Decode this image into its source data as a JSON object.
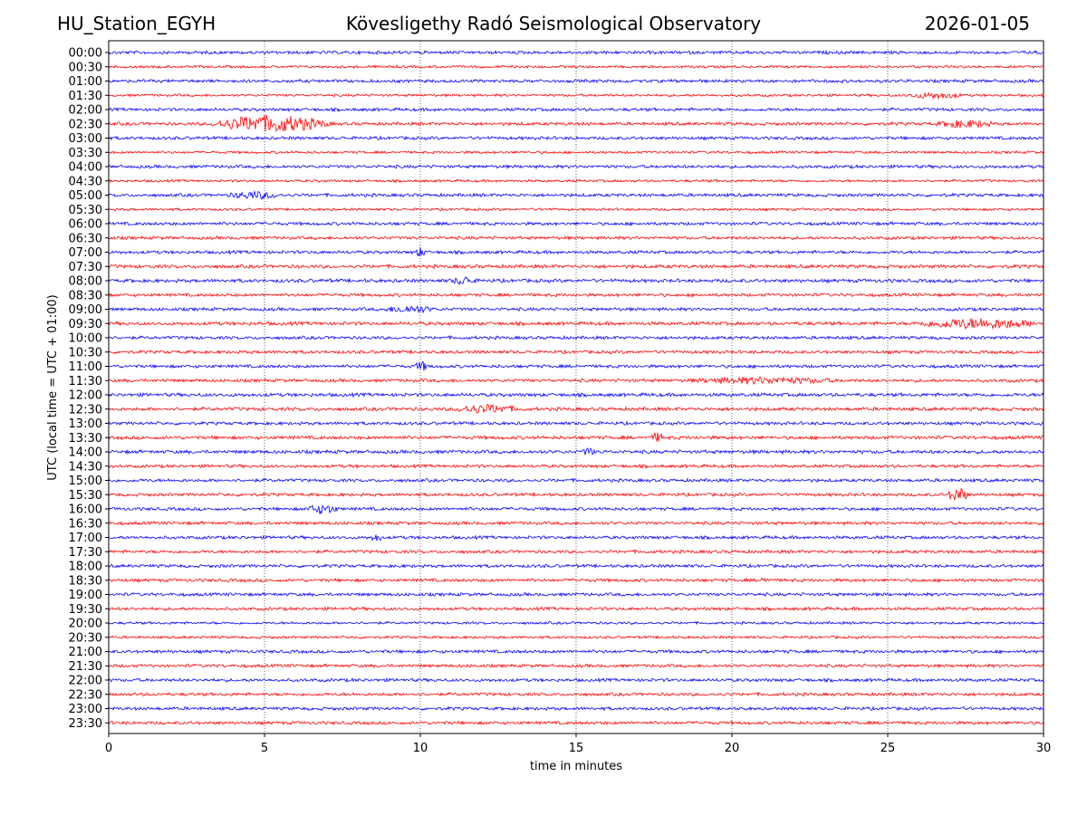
{
  "header": {
    "station": "HU_Station_EGYH",
    "title": "Kövesligethy Radó Seismological Observatory",
    "date": "2026-01-05"
  },
  "chart_data": {
    "type": "line",
    "title": "Kövesligethy Radó Seismological Observatory",
    "xlabel": "time in minutes",
    "ylabel": "UTC (local time = UTC + 01:00)",
    "xlim": [
      0,
      30
    ],
    "xticks": [
      0,
      5,
      10,
      15,
      20,
      25,
      30
    ],
    "grid": "vertical dotted lines at x ticks",
    "series_colors": [
      "#0000ff",
      "#ff0000"
    ],
    "rows": [
      "00:00",
      "00:30",
      "01:00",
      "01:30",
      "02:00",
      "02:30",
      "03:00",
      "03:30",
      "04:00",
      "04:30",
      "05:00",
      "05:30",
      "06:00",
      "06:30",
      "07:00",
      "07:30",
      "08:00",
      "08:30",
      "09:00",
      "09:30",
      "10:00",
      "10:30",
      "11:00",
      "11:30",
      "12:00",
      "12:30",
      "13:00",
      "13:30",
      "14:00",
      "14:30",
      "15:00",
      "15:30",
      "16:00",
      "16:30",
      "17:00",
      "17:30",
      "18:00",
      "18:30",
      "19:00",
      "19:30",
      "20:00",
      "20:30",
      "21:00",
      "21:30",
      "22:00",
      "22:30",
      "23:00",
      "23:30"
    ],
    "noise_level": [
      2,
      1.6,
      2,
      1.6,
      2,
      2,
      2,
      1.6,
      2,
      1.6,
      2,
      1.6,
      2,
      2,
      2,
      2.2,
      2.2,
      2,
      2,
      2.2,
      2,
      2,
      2,
      2,
      2.2,
      2.2,
      2,
      2.2,
      2.2,
      2,
      2,
      2,
      2,
      2,
      2,
      2,
      2,
      2,
      2,
      2,
      1.6,
      1.6,
      2,
      2,
      2,
      2,
      2,
      2
    ],
    "events": [
      {
        "row": "02:30",
        "start_min": 3.2,
        "end_min": 7.2,
        "amplitude": 8
      },
      {
        "row": "02:30",
        "start_min": 26.5,
        "end_min": 28.5,
        "amplitude": 3
      },
      {
        "row": "01:30",
        "start_min": 25.5,
        "end_min": 27.5,
        "amplitude": 2.5
      },
      {
        "row": "05:00",
        "start_min": 3.8,
        "end_min": 5.6,
        "amplitude": 3
      },
      {
        "row": "07:00",
        "start_min": 9.8,
        "end_min": 10.2,
        "amplitude": 4
      },
      {
        "row": "08:00",
        "start_min": 11.0,
        "end_min": 11.8,
        "amplitude": 3.5
      },
      {
        "row": "09:00",
        "start_min": 8.8,
        "end_min": 10.5,
        "amplitude": 3
      },
      {
        "row": "09:30",
        "start_min": 25.8,
        "end_min": 30,
        "amplitude": 4.5
      },
      {
        "row": "11:00",
        "start_min": 9.8,
        "end_min": 10.3,
        "amplitude": 4
      },
      {
        "row": "11:30",
        "start_min": 18.5,
        "end_min": 23.5,
        "amplitude": 2.5
      },
      {
        "row": "12:30",
        "start_min": 11.0,
        "end_min": 13.2,
        "amplitude": 3.5
      },
      {
        "row": "13:30",
        "start_min": 17.4,
        "end_min": 17.8,
        "amplitude": 4
      },
      {
        "row": "14:00",
        "start_min": 15.2,
        "end_min": 15.6,
        "amplitude": 3.5
      },
      {
        "row": "15:30",
        "start_min": 26.9,
        "end_min": 27.6,
        "amplitude": 7
      },
      {
        "row": "16:00",
        "start_min": 6.3,
        "end_min": 7.4,
        "amplitude": 4
      },
      {
        "row": "17:00",
        "start_min": 8.4,
        "end_min": 8.8,
        "amplitude": 3
      },
      {
        "row": "18:30",
        "start_min": 20.9,
        "end_min": 21.2,
        "amplitude": 3
      }
    ]
  }
}
